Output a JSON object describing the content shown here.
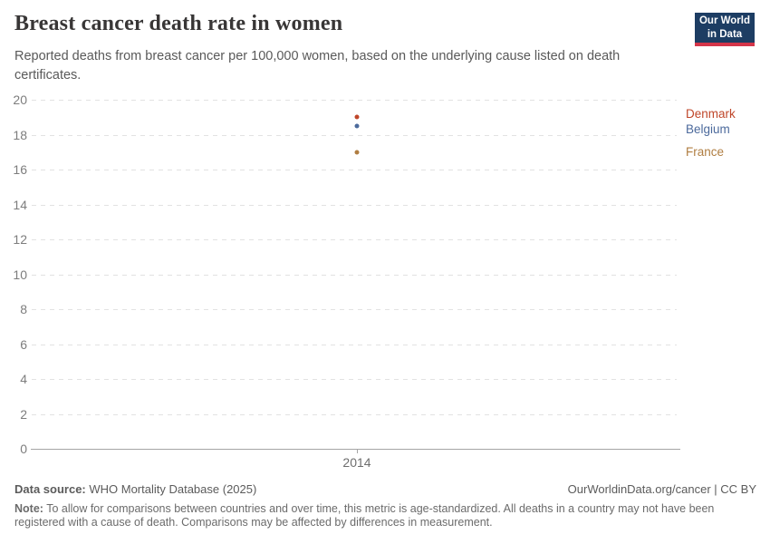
{
  "header": {
    "title": "Breast cancer death rate in women",
    "subtitle": "Reported deaths from breast cancer per 100,000 women, based on the underlying cause listed on death certificates.",
    "logo": {
      "line1": "Our World",
      "line2": "in Data",
      "bg_color": "#1d3d63",
      "accent_color": "#d43549"
    }
  },
  "chart_data": {
    "type": "scatter",
    "title": "Breast cancer death rate in women",
    "subtitle": "Reported deaths from breast cancer per 100,000 women, based on the underlying cause listed on death certificates.",
    "x": [
      "2014"
    ],
    "series": [
      {
        "name": "Denmark",
        "values": [
          19
        ],
        "color": "#BF4629"
      },
      {
        "name": "Belgium",
        "values": [
          18.5
        ],
        "color": "#4C6A9C"
      },
      {
        "name": "France",
        "values": [
          17
        ],
        "color": "#B07E42"
      }
    ],
    "xlabel": "",
    "ylabel": "",
    "ylim": [
      0,
      20
    ],
    "yticks": [
      0,
      2,
      4,
      6,
      8,
      10,
      12,
      14,
      16,
      18,
      20
    ],
    "xticks": [
      "2014"
    ],
    "grid": "horizontal-dashed",
    "legend_position": "right",
    "grid_color": "#e2e2e2",
    "axis_color": "#a5a5a5"
  },
  "footer": {
    "datasource_label": "Data source:",
    "datasource_value": " WHO Mortality Database (2025)",
    "link": "OurWorldinData.org/cancer | CC BY",
    "note_label": "Note:",
    "note_value": " To allow for comparisons between countries and over time, this metric is age-standardized. All deaths in a country may not have been registered with a cause of death. Comparisons may be affected by differences in measurement."
  }
}
